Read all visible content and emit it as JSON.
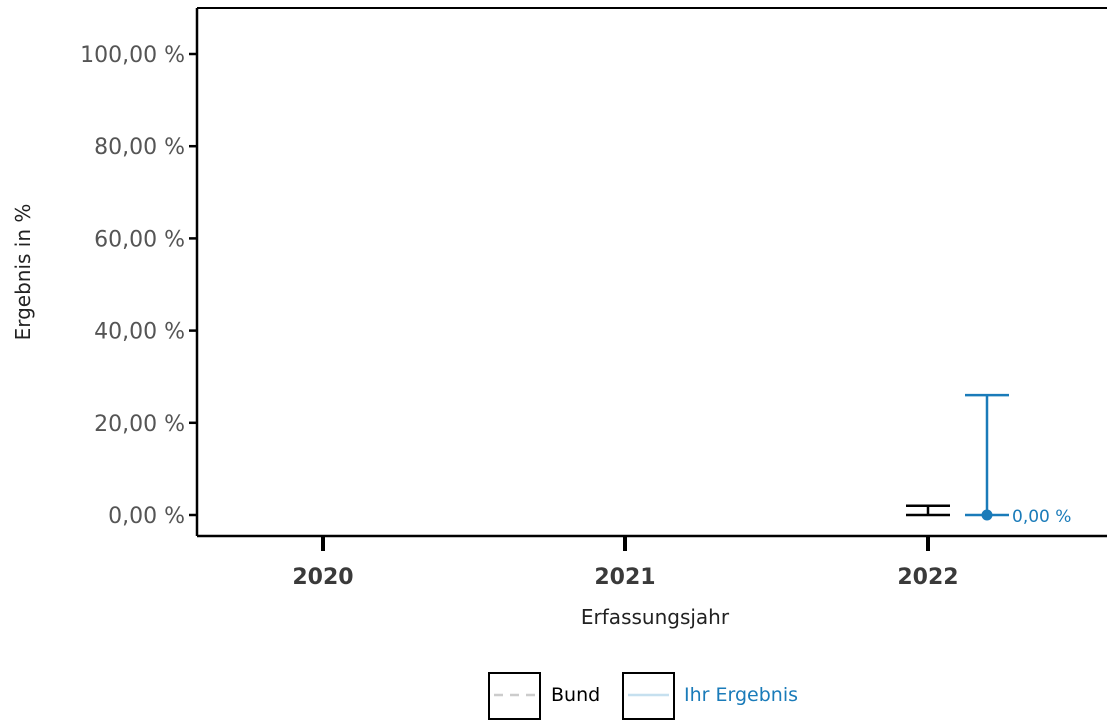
{
  "chart_data": {
    "type": "errorbar",
    "xlabel": "Erfassungsjahr",
    "ylabel": "Ergebnis in %",
    "categories": [
      "2020",
      "2021",
      "2022"
    ],
    "y_ticks": [
      0,
      20,
      40,
      60,
      80,
      100
    ],
    "y_tick_labels": [
      "0,00 %",
      "20,00 %",
      "40,00 %",
      "60,00 %",
      "80,00 %",
      "100,00 %"
    ],
    "ylim": [
      0,
      105
    ],
    "grid": false,
    "legend_position": "bottom",
    "series": [
      {
        "name": "Bund",
        "color": "#000000",
        "line_style": "dashed",
        "legend_line_color": "#cccccc",
        "points": [
          {
            "x": "2022",
            "y": 1.0,
            "ci_low": 0.0,
            "ci_high": 2.0
          }
        ]
      },
      {
        "name": "Ihr Ergebnis",
        "color": "#1a7bb9",
        "line_style": "solid",
        "legend_line_color": "#c6e0ef",
        "points": [
          {
            "x": "2022",
            "y": 0.0,
            "ci_low": 0.0,
            "ci_high": 26.0,
            "label": "0,00 %"
          }
        ]
      }
    ]
  }
}
